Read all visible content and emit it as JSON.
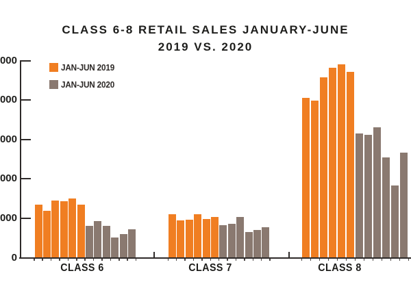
{
  "title": {
    "line1": "CLASS 6-8 RETAIL SALES JANUARY-JUNE",
    "line2": "2019 VS. 2020"
  },
  "legend": {
    "items": [
      {
        "label": "JAN-JUN 2019",
        "color": "#F07E22"
      },
      {
        "label": "JAN-JUN 2020",
        "color": "#8A7970"
      }
    ]
  },
  "chart_data": {
    "type": "bar",
    "title": "CLASS 6-8 RETAIL SALES JANUARY-JUNE 2019 VS. 2020",
    "categories": [
      "CLASS 6",
      "CLASS 7",
      "CLASS 8"
    ],
    "series": [
      {
        "name": "JAN-JUN 2019",
        "color": "#F07E22",
        "values_by_category": [
          [
            6650,
            5900,
            7200,
            7100,
            7450,
            6650
          ],
          [
            5450,
            4650,
            4750,
            5500,
            4900,
            5100
          ],
          [
            20200,
            19850,
            22850,
            24050,
            24450,
            23550
          ]
        ]
      },
      {
        "name": "JAN-JUN 2020",
        "color": "#8A7970",
        "values_by_category": [
          [
            3950,
            4600,
            3950,
            2500,
            2950,
            3550
          ],
          [
            4050,
            4250,
            5150,
            3250,
            3500,
            3850
          ],
          [
            15700,
            15500,
            16500,
            12650,
            9150,
            13300
          ]
        ]
      }
    ],
    "y_axis": {
      "min": 0,
      "max": 25000,
      "tick_step": 5000,
      "visible_tick_labels_top_to_bottom": [
        "000",
        "000",
        "000",
        "000",
        "000",
        "0"
      ]
    },
    "x_axis": {
      "labels": [
        "CLASS 6",
        "CLASS 7",
        "CLASS 8"
      ]
    },
    "grid": false,
    "legend_position": "top-left-inside",
    "axis_color": "#2e2a29",
    "text_color": "#1d1d1b"
  }
}
